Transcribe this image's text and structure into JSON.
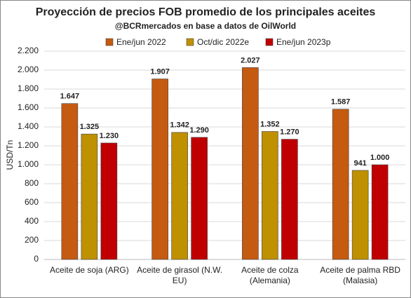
{
  "chart_data": {
    "type": "bar",
    "title": "Proyección de precios FOB promedio de los principales aceites",
    "subtitle": "@BCRmercados en base a datos de OilWorld",
    "y_label": "USD/Tn",
    "categories": [
      "Aceite de soja (ARG)",
      "Aceite de girasol (N.W. EU)",
      "Aceite de colza (Alemania)",
      "Aceite de palma RBD (Malasia)"
    ],
    "series": [
      {
        "name": "Ene/jun 2022",
        "color": "#c55a11",
        "values": [
          1647,
          1907,
          2027,
          1587
        ],
        "value_labels": [
          "1.647",
          "1.907",
          "2.027",
          "1.587"
        ]
      },
      {
        "name": "Oct/dic 2022e",
        "color": "#bf9000",
        "values": [
          1325,
          1342,
          1352,
          941
        ],
        "value_labels": [
          "1.325",
          "1.342",
          "1.352",
          "941"
        ]
      },
      {
        "name": "Ene/jun 2023p",
        "color": "#c00000",
        "values": [
          1230,
          1290,
          1270,
          1000
        ],
        "value_labels": [
          "1.230",
          "1.290",
          "1.270",
          "1.000"
        ]
      }
    ],
    "ylim": [
      0,
      2200
    ],
    "yticks": [
      0,
      200,
      400,
      600,
      800,
      {
        "value": 1000,
        "label": "1.000"
      },
      {
        "value": 1200,
        "label": "1.200"
      },
      {
        "value": 1400,
        "label": "1.400"
      },
      {
        "value": 1600,
        "label": "1.600"
      },
      {
        "value": 1800,
        "label": "1.800"
      },
      {
        "value": 2000,
        "label": "2.000"
      },
      {
        "value": 2200,
        "label": "2.200"
      }
    ],
    "grid": true,
    "legend": "top"
  }
}
